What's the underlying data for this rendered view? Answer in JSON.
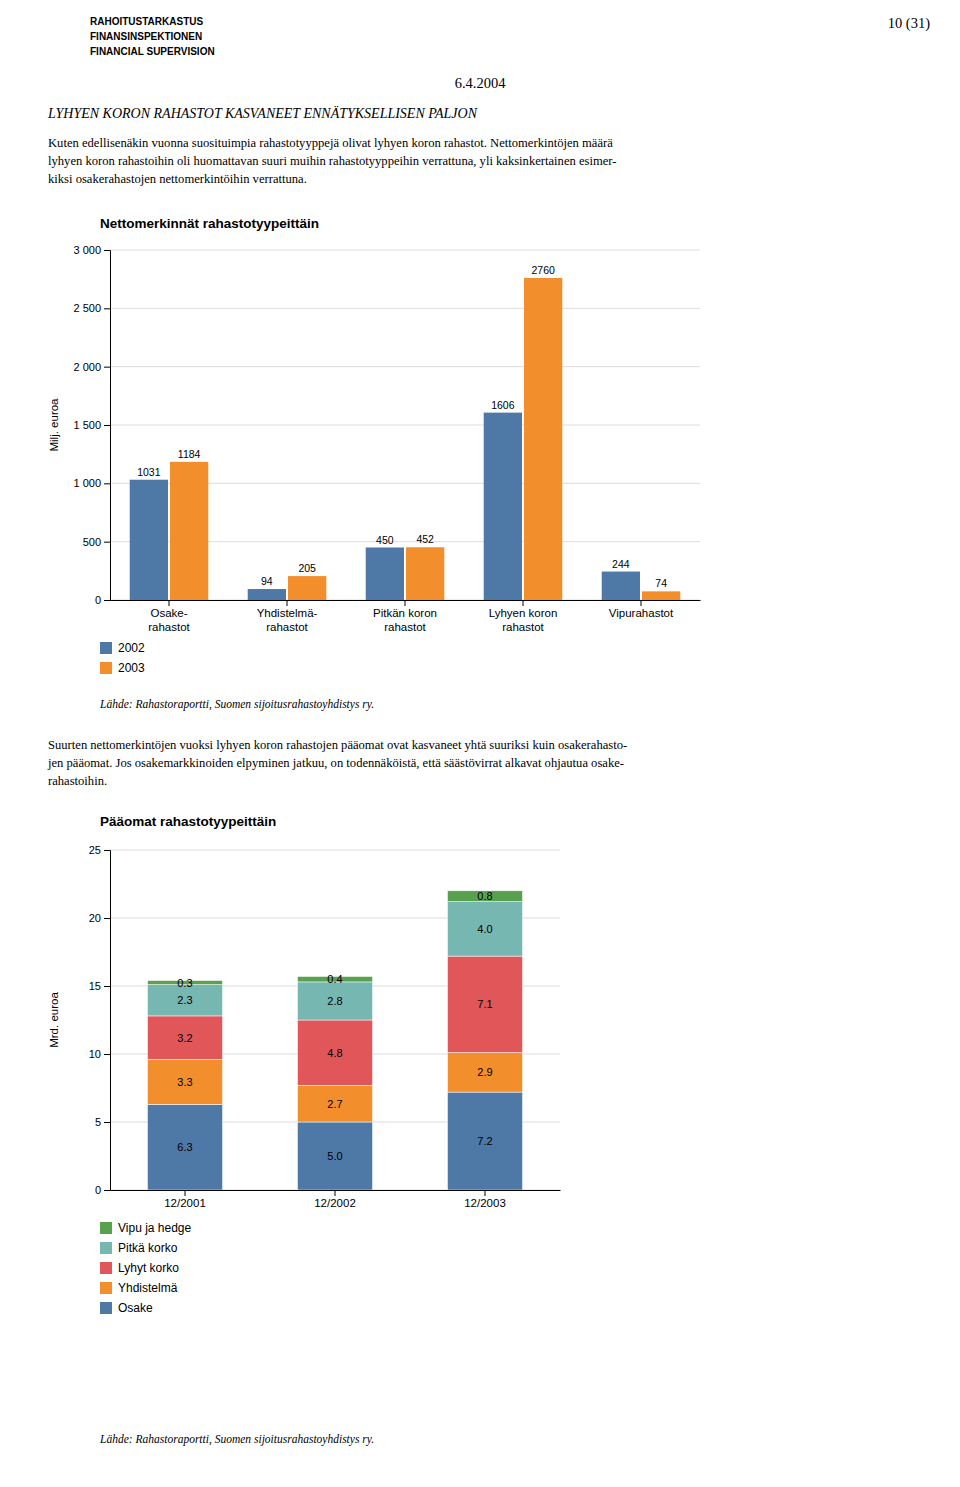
{
  "logo_text": [
    "RAHOITUSTARKASTUS",
    "FINANSINSPEKTIONEN",
    "FINANCIAL SUPERVISION"
  ],
  "page_header": "10 (31)",
  "date": "6.4.2004",
  "heading": "LYHYEN KORON RAHASTOT KASVANEET ENNÄTYKSELLISEN PALJON",
  "paragraph1": [
    "Kuten edellisenäkin vuonna suosituimpia rahastotyyppejä olivat lyhyen koron rahastot. Nettomerkintöjen määrä",
    "lyhyen koron rahastoihin oli huomattavan suuri muihin rahastotyyppeihin verrattuna, yli kaksinkertainen esimer-",
    "kiksi osakerahastojen nettomerkintöihin verrattuna."
  ],
  "paragraph2": [
    "Suurten nettomerkintöjen vuoksi lyhyen koron rahastojen pääomat ovat kasvaneet yhtä suuriksi kuin osakerahasto-",
    "jen pääomat. Jos osakemarkkinoiden elpyminen jatkuu, on todennäköistä, että säästövirrat alkavat ohjautua osake-",
    "rahastoihin."
  ],
  "chart_data": [
    {
      "type": "bar",
      "title": "Nettomerkinnät rahastotyypeittäin",
      "ylabel": "Milj. euroa",
      "categories": [
        "Osake-\nrahastot",
        "Yhdistelmä-\nrahastot",
        "Pitkän koron\nrahastot",
        "Lyhyen koron\nrahastot",
        "Vipurahastot"
      ],
      "series": [
        {
          "name": "2002",
          "values": [
            1031,
            94,
            450,
            1606,
            244
          ]
        },
        {
          "name": "2003",
          "values": [
            1184,
            205,
            452,
            2760,
            74
          ]
        }
      ],
      "ylim": [
        0,
        3000
      ],
      "yticks": [
        0,
        500,
        {
          "value": 1000,
          "label": "1 000"
        },
        {
          "value": 1500,
          "label": "1 500"
        },
        {
          "value": 2000,
          "label": "2 000"
        },
        {
          "value": 2500,
          "label": "2 500"
        },
        {
          "value": 3000,
          "label": "3 000"
        }
      ],
      "grid": true,
      "legend": "bottom",
      "data_labels": true,
      "source": "Lähde:  Rahastoraportti, Suomen sijoitusrahastoyhdistys ry."
    },
    {
      "type": "bar",
      "stacked": true,
      "title": "Pääomat rahastotyypeittäin",
      "ylabel": "Mrd. euroa",
      "categories": [
        "12/2001",
        "12/2002",
        "12/2003"
      ],
      "series": [
        {
          "name": "Osake",
          "values": [
            6.3,
            5.0,
            7.2
          ],
          "value_labels": [
            "6.3",
            "5.0",
            "7.2"
          ]
        },
        {
          "name": "Yhdistelmä",
          "values": [
            3.3,
            2.7,
            2.9
          ],
          "value_labels": [
            "3.3",
            "2.7",
            "2.9"
          ]
        },
        {
          "name": "Lyhyt korko",
          "values": [
            3.2,
            4.8,
            7.1
          ],
          "value_labels": [
            "3.2",
            "4.8",
            "7.1"
          ]
        },
        {
          "name": "Pitkä korko",
          "values": [
            2.3,
            2.8,
            4.0
          ],
          "value_labels": [
            "2.3",
            "2.8",
            "4.0"
          ]
        },
        {
          "name": "Vipu ja hedge",
          "values": [
            0.3,
            0.4,
            0.8
          ],
          "value_labels": [
            "0.3",
            "0.4",
            "0.8"
          ]
        }
      ],
      "ylim": [
        0,
        25
      ],
      "yticks": [
        0,
        5,
        10,
        15,
        20,
        25
      ],
      "grid": true,
      "legend": "bottom",
      "data_labels": true,
      "source": "Lähde:  Rahastoraportti, Suomen sijoitusrahastoyhdistys ry."
    }
  ]
}
